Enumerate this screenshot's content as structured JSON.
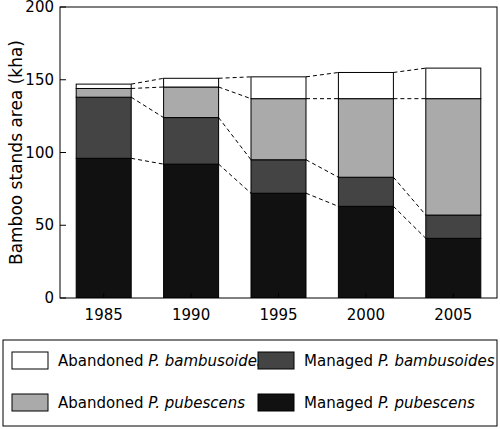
{
  "chart_data": {
    "type": "bar",
    "stacked": true,
    "legend": "bottom",
    "y_label": "Bamboo stands area (kha)",
    "categories": [
      "1985",
      "1990",
      "1995",
      "2000",
      "2005"
    ],
    "ylim": [
      0,
      200
    ],
    "yticks": [
      0,
      50,
      100,
      150,
      200
    ],
    "series": [
      {
        "name": "Managed P. pubescens",
        "color": "#111111",
        "values": [
          96,
          92,
          72,
          63,
          41
        ]
      },
      {
        "name": "Managed P. bambusoides",
        "color": "#444444",
        "values": [
          42,
          32,
          23,
          20,
          16
        ]
      },
      {
        "name": "Abandoned P. pubescens",
        "color": "#aaaaaa",
        "values": [
          6,
          21,
          42,
          54,
          80
        ]
      },
      {
        "name": "Abandoned P. bambusoides",
        "color": "#ffffff",
        "values": [
          3,
          6,
          15,
          18,
          21
        ]
      }
    ]
  }
}
